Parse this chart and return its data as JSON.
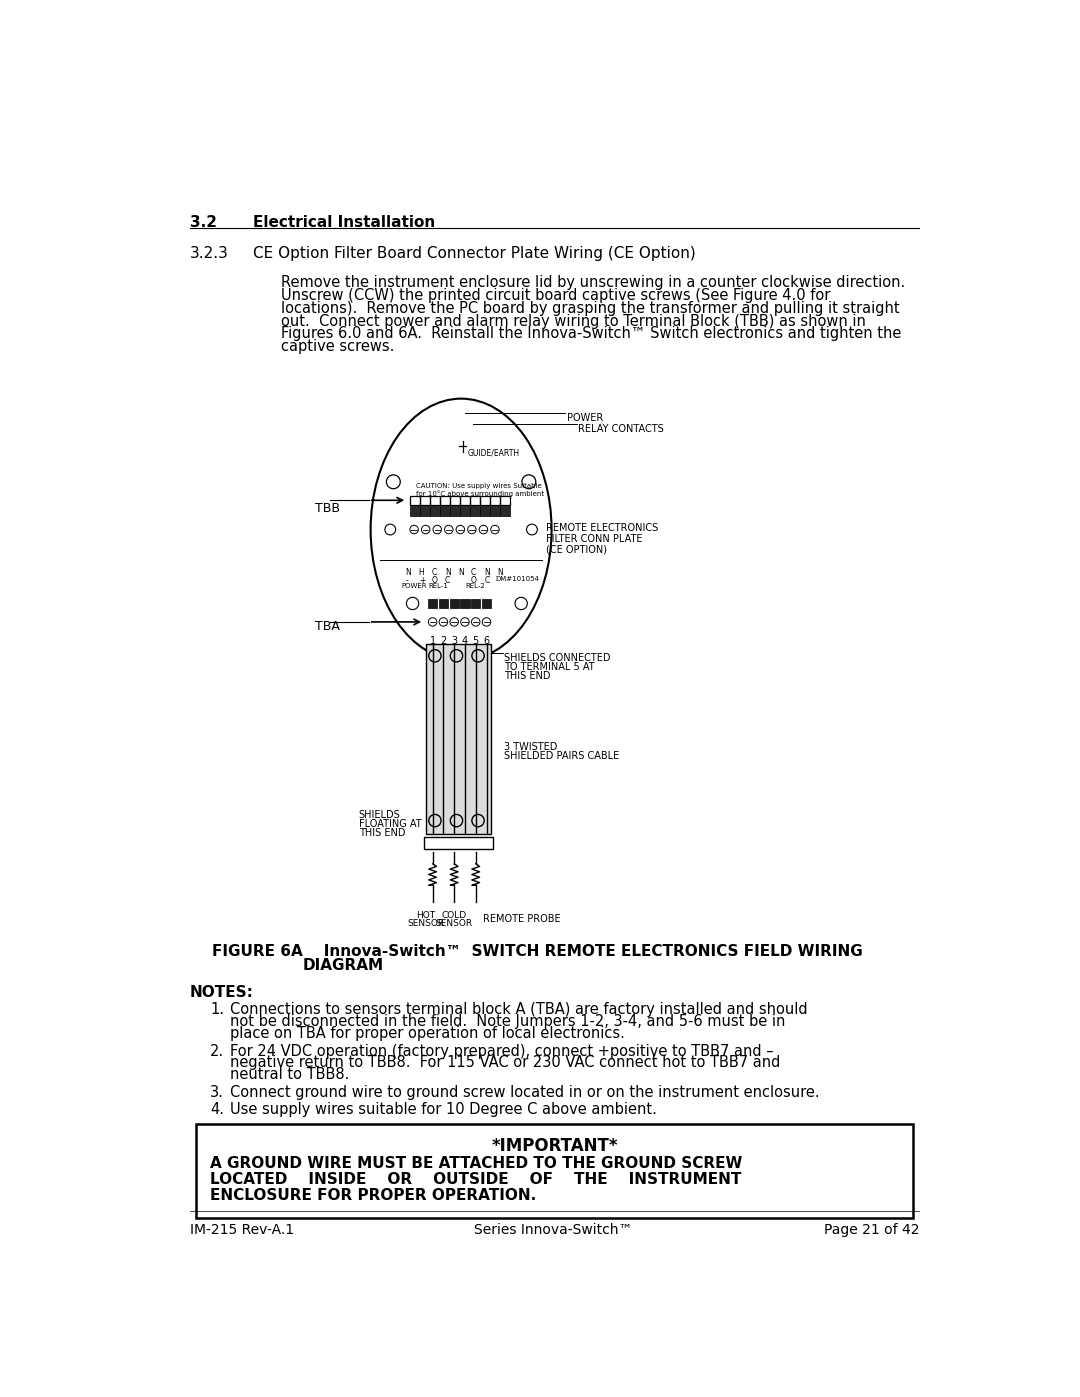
{
  "page_bg": "#ffffff",
  "section_num": "3.2",
  "section_title": "Electrical Installation",
  "subsection_num": "3.2.3",
  "subsection_title": "CE Option Filter Board Connector Plate Wiring (CE Option)",
  "body_lines": [
    "Remove the instrument enclosure lid by unscrewing in a counter clockwise direction.",
    "Unscrew (CCW) the printed circuit board captive screws (See Figure 4.0 for",
    "locations).  Remove the PC board by grasping the transformer and pulling it straight",
    "out.  Connect power and alarm relay wiring to Terminal Block (TBB) as shown in",
    "Figures 6.0 and 6A.  Reinstall the Innova-Switch™ Switch electronics and tighten the",
    "captive screws."
  ],
  "figure_caption_line1": "FIGURE 6A    Innova-Switch™  SWITCH REMOTE ELECTRONICS FIELD WIRING",
  "figure_caption_line2": "DIAGRAM",
  "notes_header": "NOTES:",
  "note1_lines": [
    "Connections to sensors terminal block A (TBA) are factory installed and should",
    "not be disconnected in the field.  Note Jumpers 1-2, 3-4, and 5-6 must be in",
    "place on TBA for proper operation of local electronics."
  ],
  "note2_lines": [
    "For 24 VDC operation (factory prepared), connect +positive to TBB7 and –",
    "negative return to TBB8.  For 115 VAC or 230 VAC connect hot to TBB7 and",
    "neutral to TBB8."
  ],
  "note3": "Connect ground wire to ground screw located in or on the instrument enclosure.",
  "note4": "Use supply wires suitable for 10 Degree C above ambient.",
  "important_title": "*IMPORTANT*",
  "important_lines": [
    "A GROUND WIRE MUST BE ATTACHED TO THE GROUND SCREW",
    "LOCATED    INSIDE    OR    OUTSIDE    OF    THE    INSTRUMENT",
    "ENCLOSURE FOR PROPER OPERATION."
  ],
  "footer_left": "IM-215 Rev-A.1",
  "footer_center": "Series Innova-Switch™",
  "footer_right": "Page 21 of 42"
}
